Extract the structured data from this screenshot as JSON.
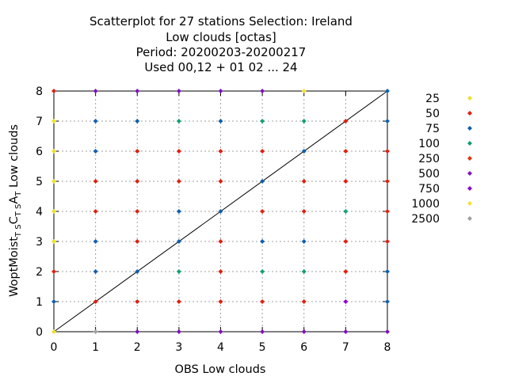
{
  "chart_data": {
    "type": "scatter",
    "title_lines": [
      "Scatterplot for   27 stations Selection: Ireland",
      "Low clouds [octas]",
      "Period: 20200203-20200217",
      "Used  00,12  + 01 02 ... 24"
    ],
    "xlabel": "OBS Low clouds",
    "ylabel": "WoptMoist",
    "ylabel_parts": [
      {
        "text": "WoptMoist",
        "sub": false
      },
      {
        "text": "T S",
        "sub": true
      },
      {
        "text": "C",
        "sub": false
      },
      {
        "text": "T S",
        "sub": true
      },
      {
        "text": "A",
        "sub": false
      },
      {
        "text": "T",
        "sub": true
      },
      {
        "text": "  Low clouds",
        "sub": false
      }
    ],
    "xlim": [
      0,
      8
    ],
    "ylim": [
      0,
      8
    ],
    "xticks": [
      "0",
      "1",
      "2",
      "3",
      "4",
      "5",
      "6",
      "7",
      "8"
    ],
    "yticks": [
      "0",
      "1",
      "2",
      "3",
      "4",
      "5",
      "6",
      "7",
      "8"
    ],
    "grid": true,
    "diagonal": [
      [
        0,
        0
      ],
      [
        8,
        8
      ]
    ],
    "legend_position": "right",
    "legend": [
      {
        "label": "25",
        "color": "#f0e020"
      },
      {
        "label": "50",
        "color": "#e02010"
      },
      {
        "label": "75",
        "color": "#1060b0"
      },
      {
        "label": "100",
        "color": "#10a070"
      },
      {
        "label": "250",
        "color": "#e83010"
      },
      {
        "label": "500",
        "color": "#8010c0"
      },
      {
        "label": "750",
        "color": "#9000d0"
      },
      {
        "label": "1000",
        "color": "#f8e030"
      },
      {
        "label": "2500",
        "color": "#a0a0a0"
      }
    ],
    "points": [
      {
        "x": 0,
        "y": 0,
        "c": "#f0e020"
      },
      {
        "x": 0,
        "y": 1,
        "c": "#1060b0"
      },
      {
        "x": 0,
        "y": 2,
        "c": "#e02010"
      },
      {
        "x": 0,
        "y": 3,
        "c": "#f0e020"
      },
      {
        "x": 0,
        "y": 4,
        "c": "#f0e020"
      },
      {
        "x": 0,
        "y": 5,
        "c": "#f0e020"
      },
      {
        "x": 0,
        "y": 6,
        "c": "#f0e020"
      },
      {
        "x": 0,
        "y": 7,
        "c": "#f0e020"
      },
      {
        "x": 0,
        "y": 8,
        "c": "#e02010"
      },
      {
        "x": 1,
        "y": 0,
        "c": "#a0a0a0"
      },
      {
        "x": 1,
        "y": 1,
        "c": "#e02010"
      },
      {
        "x": 1,
        "y": 2,
        "c": "#1060b0"
      },
      {
        "x": 1,
        "y": 3,
        "c": "#1060b0"
      },
      {
        "x": 1,
        "y": 4,
        "c": "#e02010"
      },
      {
        "x": 1,
        "y": 5,
        "c": "#e02010"
      },
      {
        "x": 1,
        "y": 6,
        "c": "#1060b0"
      },
      {
        "x": 1,
        "y": 7,
        "c": "#1060b0"
      },
      {
        "x": 1,
        "y": 8,
        "c": "#8010c0"
      },
      {
        "x": 2,
        "y": 0,
        "c": "#8010c0"
      },
      {
        "x": 2,
        "y": 1,
        "c": "#e02010"
      },
      {
        "x": 2,
        "y": 2,
        "c": "#1060b0"
      },
      {
        "x": 2,
        "y": 3,
        "c": "#e02010"
      },
      {
        "x": 2,
        "y": 4,
        "c": "#e02010"
      },
      {
        "x": 2,
        "y": 5,
        "c": "#e02010"
      },
      {
        "x": 2,
        "y": 6,
        "c": "#e02010"
      },
      {
        "x": 2,
        "y": 7,
        "c": "#1060b0"
      },
      {
        "x": 2,
        "y": 8,
        "c": "#8010c0"
      },
      {
        "x": 3,
        "y": 0,
        "c": "#8010c0"
      },
      {
        "x": 3,
        "y": 1,
        "c": "#e02010"
      },
      {
        "x": 3,
        "y": 2,
        "c": "#10a070"
      },
      {
        "x": 3,
        "y": 3,
        "c": "#1060b0"
      },
      {
        "x": 3,
        "y": 4,
        "c": "#1060b0"
      },
      {
        "x": 3,
        "y": 5,
        "c": "#e02010"
      },
      {
        "x": 3,
        "y": 6,
        "c": "#e02010"
      },
      {
        "x": 3,
        "y": 7,
        "c": "#10a070"
      },
      {
        "x": 3,
        "y": 8,
        "c": "#8010c0"
      },
      {
        "x": 4,
        "y": 0,
        "c": "#8010c0"
      },
      {
        "x": 4,
        "y": 1,
        "c": "#e02010"
      },
      {
        "x": 4,
        "y": 2,
        "c": "#e02010"
      },
      {
        "x": 4,
        "y": 3,
        "c": "#e02010"
      },
      {
        "x": 4,
        "y": 4,
        "c": "#1060b0"
      },
      {
        "x": 4,
        "y": 5,
        "c": "#e02010"
      },
      {
        "x": 4,
        "y": 6,
        "c": "#e02010"
      },
      {
        "x": 4,
        "y": 7,
        "c": "#1060b0"
      },
      {
        "x": 4,
        "y": 8,
        "c": "#8010c0"
      },
      {
        "x": 5,
        "y": 0,
        "c": "#8010c0"
      },
      {
        "x": 5,
        "y": 1,
        "c": "#e02010"
      },
      {
        "x": 5,
        "y": 2,
        "c": "#10a070"
      },
      {
        "x": 5,
        "y": 3,
        "c": "#1060b0"
      },
      {
        "x": 5,
        "y": 4,
        "c": "#e02010"
      },
      {
        "x": 5,
        "y": 5,
        "c": "#1060b0"
      },
      {
        "x": 5,
        "y": 6,
        "c": "#e02010"
      },
      {
        "x": 5,
        "y": 7,
        "c": "#10a070"
      },
      {
        "x": 5,
        "y": 8,
        "c": "#8010c0"
      },
      {
        "x": 6,
        "y": 0,
        "c": "#8010c0"
      },
      {
        "x": 6,
        "y": 1,
        "c": "#e02010"
      },
      {
        "x": 6,
        "y": 2,
        "c": "#10a070"
      },
      {
        "x": 6,
        "y": 3,
        "c": "#1060b0"
      },
      {
        "x": 6,
        "y": 4,
        "c": "#e02010"
      },
      {
        "x": 6,
        "y": 5,
        "c": "#e02010"
      },
      {
        "x": 6,
        "y": 6,
        "c": "#1060b0"
      },
      {
        "x": 6,
        "y": 7,
        "c": "#10a070"
      },
      {
        "x": 6,
        "y": 8,
        "c": "#f8e030"
      },
      {
        "x": 7,
        "y": 0,
        "c": "#8010c0"
      },
      {
        "x": 7,
        "y": 1,
        "c": "#9000d0"
      },
      {
        "x": 7,
        "y": 2,
        "c": "#e02010"
      },
      {
        "x": 7,
        "y": 3,
        "c": "#e02010"
      },
      {
        "x": 7,
        "y": 4,
        "c": "#10a070"
      },
      {
        "x": 7,
        "y": 5,
        "c": "#e02010"
      },
      {
        "x": 7,
        "y": 6,
        "c": "#e02010"
      },
      {
        "x": 7,
        "y": 7,
        "c": "#e02010"
      },
      {
        "x": 8,
        "y": 0,
        "c": "#8010c0"
      },
      {
        "x": 8,
        "y": 1,
        "c": "#1060b0"
      },
      {
        "x": 8,
        "y": 2,
        "c": "#1060b0"
      },
      {
        "x": 8,
        "y": 3,
        "c": "#e02010"
      },
      {
        "x": 8,
        "y": 4,
        "c": "#e02010"
      },
      {
        "x": 8,
        "y": 5,
        "c": "#e02010"
      },
      {
        "x": 8,
        "y": 6,
        "c": "#e02010"
      },
      {
        "x": 8,
        "y": 7,
        "c": "#1060b0"
      },
      {
        "x": 8,
        "y": 8,
        "c": "#1060b0"
      }
    ]
  }
}
